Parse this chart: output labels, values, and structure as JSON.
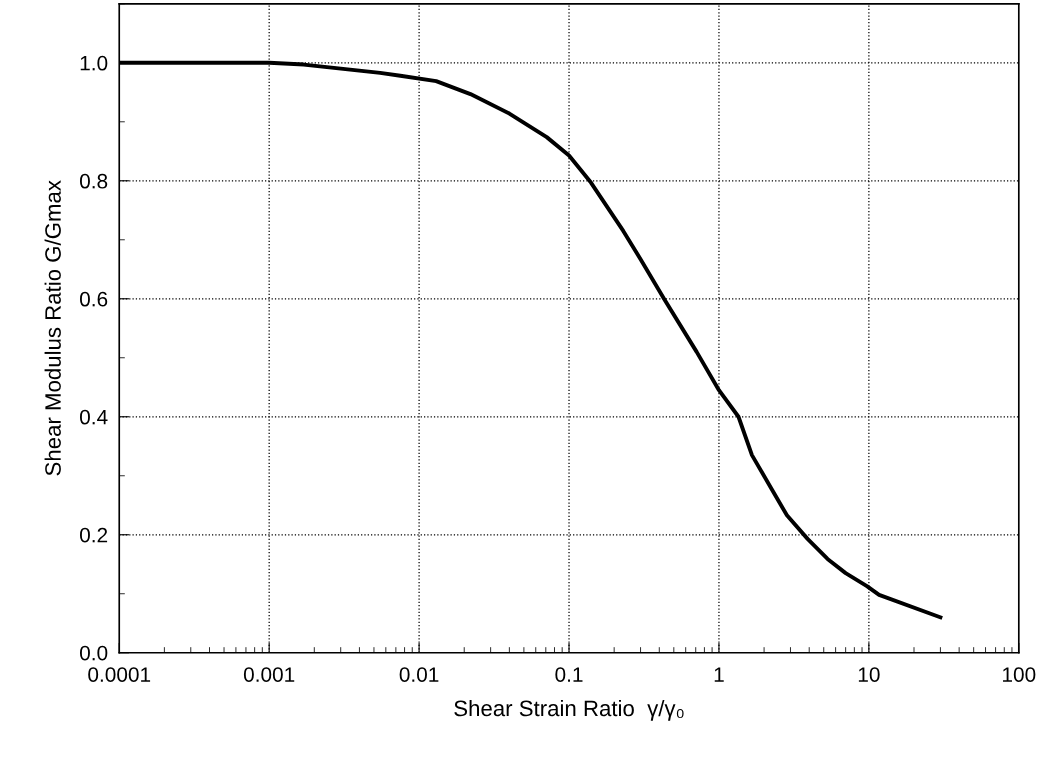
{
  "chart_data": {
    "type": "line",
    "xlabel": "Shear Strain Ratio  γ/γ₀",
    "ylabel": "Shear Modulus Ratio G/Gmax",
    "log": "x",
    "grid": true,
    "marker": "none",
    "line_style": "solid",
    "xlim": [
      0.0001,
      100
    ],
    "ylim": [
      0,
      1.1
    ],
    "xticks": [
      {
        "value": 0.0001,
        "label": "0.0001"
      },
      {
        "value": 0.001,
        "label": "0.001"
      },
      {
        "value": 0.01,
        "label": "0.01"
      },
      {
        "value": 0.1,
        "label": "0.1"
      },
      {
        "value": 1,
        "label": "1"
      },
      {
        "value": 10,
        "label": "10"
      },
      {
        "value": 100,
        "label": "100"
      }
    ],
    "yticks": [
      {
        "value": 0,
        "label": "0.0"
      },
      {
        "value": 0.2,
        "label": "0.2"
      },
      {
        "value": 0.4,
        "label": "0.4"
      },
      {
        "value": 0.6,
        "label": "0.6"
      },
      {
        "value": 0.8,
        "label": "0.8"
      },
      {
        "value": 1.0,
        "label": "1.0"
      }
    ],
    "series": [
      {
        "color": "#000000",
        "x": [
          0.0001,
          0.001,
          0.0017,
          0.0055,
          0.0075,
          0.013,
          0.022,
          0.04,
          0.071,
          0.1,
          0.14,
          0.23,
          0.3,
          0.43,
          0.71,
          1,
          1.35,
          1.66,
          2.25,
          2.84,
          3.9,
          5.3,
          7,
          9.7,
          11.7,
          30
        ],
        "values": [
          1.0,
          1.0,
          0.997,
          0.983,
          0.978,
          0.969,
          0.947,
          0.914,
          0.874,
          0.843,
          0.797,
          0.715,
          0.667,
          0.6,
          0.51,
          0.445,
          0.4,
          0.335,
          0.277,
          0.233,
          0.193,
          0.159,
          0.135,
          0.113,
          0.098,
          0.06
        ]
      }
    ]
  }
}
